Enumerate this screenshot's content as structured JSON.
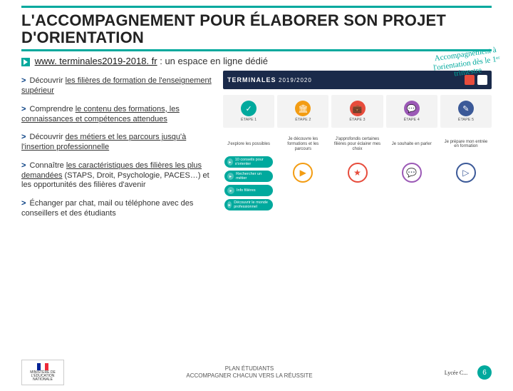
{
  "colors": {
    "accent": "#00a99d",
    "navy": "#003a80",
    "dark": "#1a2a4a",
    "red": "#e74c3c",
    "orange": "#f39c12",
    "purple": "#9b59b6",
    "blue": "#3498db",
    "yellow": "#f1c40f"
  },
  "title": "L'ACCOMPAGNEMENT POUR ÉLABORER SON PROJET D'ORIENTATION",
  "sublink": {
    "url": "www. terminales2019-2018. fr",
    "tail": " : un espace en ligne dédié"
  },
  "annotation": "Accompagnement à l'orientation dès le 1ᵉʳ trimestre",
  "bullets": [
    {
      "plain": "Découvrir ",
      "u": "les filières de formation de l'enseignement supérieur"
    },
    {
      "plain": "Comprendre ",
      "u": "le contenu des formations, les connaissances et compétences attendues"
    },
    {
      "plain": "Découvrir ",
      "u": "des métiers et les parcours jusqu'à l'insertion professionnelle"
    },
    {
      "plain": "Connaître ",
      "u": "les caractéristiques des filières les plus demandées",
      "tail": " (STAPS, Droit, Psychologie, PACES…) et les opportunités des filières d'avenir"
    },
    {
      "plain": "Échanger ",
      "u": "",
      "tail": "par chat, mail ou téléphone avec des conseillers et des étudiants"
    }
  ],
  "banner": {
    "left1": "TERMINALES",
    "left2": "2019/2020",
    "logos": [
      "#e74c3c",
      "#ffffff"
    ]
  },
  "steps": [
    {
      "color": "#00a99d",
      "label": "ÉTAPE 1"
    },
    {
      "color": "#f39c12",
      "label": "ÉTAPE 2"
    },
    {
      "color": "#e74c3c",
      "label": "ÉTAPE 3"
    },
    {
      "color": "#9b59b6",
      "label": "ÉTAPE 4"
    },
    {
      "color": "#3b5998",
      "label": "ÉTAPE 5"
    }
  ],
  "cardcols": [
    {
      "head": "J'explore les possibles",
      "color": "#00a99d",
      "pills": [
        "10 conseils pour s'orienter",
        "Rechercher un métier",
        "Info filières",
        "Découvrir le monde professionnel"
      ],
      "icon": null
    },
    {
      "head": "Je découvre les formations et les parcours",
      "color": "#f39c12",
      "pills": [],
      "icon": "▶"
    },
    {
      "head": "J'approfondis certaines filières pour éclairer mes choix",
      "color": "#e74c3c",
      "pills": [],
      "icon": "★"
    },
    {
      "head": "Je souhaite en parler",
      "color": "#9b59b6",
      "pills": [],
      "icon": "💬"
    },
    {
      "head": "Je prépare mon entrée en formation",
      "color": "#3b5998",
      "pills": [],
      "icon": "▷"
    }
  ],
  "footer": {
    "logo_left": "MINISTÈRE DE L'ÉDUCATION NATIONALE",
    "center1": "PLAN ÉTUDIANTS",
    "center2": "ACCOMPAGNER CHACUN VERS LA RÉUSSITE",
    "logo_right": "Lycée C...",
    "page": "6"
  }
}
